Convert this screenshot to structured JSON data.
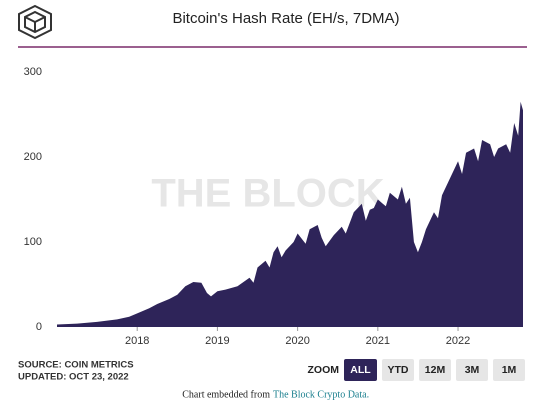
{
  "chart_data": {
    "type": "area",
    "title": "Bitcoin's Hash Rate (EH/s, 7DMA)",
    "watermark": "THE BLOCK",
    "source": "SOURCE: COIN METRICS",
    "updated": "UPDATED: OCT 23, 2022",
    "zoom": {
      "label": "ZOOM",
      "buttons": [
        "ALL",
        "YTD",
        "12M",
        "3M",
        "1M"
      ]
    },
    "footer": {
      "text": "Chart embedded from",
      "link": "The Block Crypto Data."
    },
    "color": "#2e2459",
    "x": [
      2017.0,
      2017.25,
      2017.5,
      2017.75,
      2017.9,
      2018.0,
      2018.15,
      2018.25,
      2018.4,
      2018.5,
      2018.6,
      2018.7,
      2018.8,
      2018.87,
      2018.92,
      2019.0,
      2019.1,
      2019.25,
      2019.4,
      2019.45,
      2019.5,
      2019.6,
      2019.65,
      2019.7,
      2019.75,
      2019.8,
      2019.85,
      2019.95,
      2020.0,
      2020.1,
      2020.15,
      2020.25,
      2020.3,
      2020.35,
      2020.45,
      2020.55,
      2020.6,
      2020.7,
      2020.8,
      2020.85,
      2020.9,
      2020.95,
      2021.0,
      2021.1,
      2021.15,
      2021.25,
      2021.3,
      2021.35,
      2021.4,
      2021.45,
      2021.5,
      2021.55,
      2021.6,
      2021.7,
      2021.75,
      2021.8,
      2021.9,
      2022.0,
      2022.05,
      2022.1,
      2022.2,
      2022.25,
      2022.3,
      2022.4,
      2022.45,
      2022.5,
      2022.6,
      2022.65,
      2022.7,
      2022.75,
      2022.78,
      2022.81
    ],
    "values": [
      3,
      4,
      6,
      9,
      12,
      16,
      22,
      27,
      33,
      38,
      48,
      53,
      52,
      40,
      36,
      42,
      44,
      48,
      58,
      52,
      70,
      78,
      70,
      88,
      95,
      82,
      90,
      100,
      110,
      98,
      115,
      120,
      105,
      95,
      108,
      118,
      110,
      135,
      145,
      125,
      138,
      140,
      150,
      142,
      158,
      150,
      165,
      145,
      152,
      100,
      88,
      100,
      115,
      135,
      128,
      155,
      175,
      195,
      180,
      205,
      210,
      195,
      220,
      215,
      200,
      210,
      215,
      205,
      240,
      225,
      265,
      255
    ],
    "xlim": [
      2017.0,
      2022.81
    ],
    "xticks": [
      2018,
      2019,
      2020,
      2021,
      2022
    ],
    "ylim": [
      0,
      300
    ],
    "yticks": [
      0,
      100,
      200,
      300
    ],
    "grid": false
  }
}
